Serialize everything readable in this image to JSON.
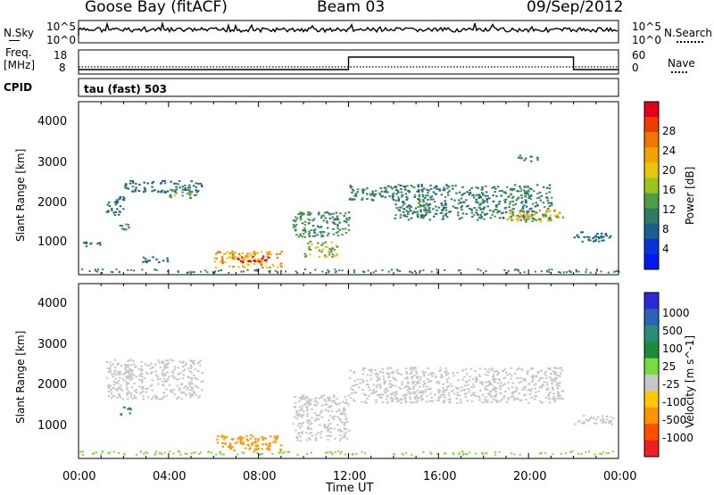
{
  "header": {
    "site": "Goose Bay (fitACF)",
    "beam": "Beam 03",
    "date": "09/Sep/2012"
  },
  "noise_panel": {
    "left_label": "N.Sky",
    "right_label": "N.Search",
    "left_ticks": [
      "10^5",
      "10^0"
    ],
    "right_ticks": [
      "10^5",
      "10^0"
    ]
  },
  "freq_panel": {
    "left_label_1": "Freq.",
    "left_label_2": "[MHz]",
    "left_ticks": [
      "18",
      "8"
    ],
    "right_label": "Nave",
    "right_ticks": [
      "60",
      "0"
    ],
    "cpid_label": "CPID"
  },
  "cpid_text": "tau (fast) 503",
  "x_axis": {
    "label": "Time UT",
    "ticks": [
      "00:00",
      "04:00",
      "08:00",
      "12:00",
      "16:00",
      "20:00",
      "00:00"
    ]
  },
  "y_axis": {
    "label": "Slant Range [km]",
    "ticks": [
      "4000",
      "3000",
      "2000",
      "1000"
    ]
  },
  "power_colorbar": {
    "label": "Power [dB]",
    "ticks": [
      "28",
      "24",
      "20",
      "16",
      "12",
      "8",
      "4"
    ],
    "colors": [
      "#e4001a",
      "#ee3d00",
      "#f07800",
      "#f5a300",
      "#e6c70a",
      "#9ec31f",
      "#4e9c48",
      "#2d7a67",
      "#1b5f8c",
      "#0832d8",
      "#0018f5"
    ]
  },
  "velocity_colorbar": {
    "label": "Velocity [m s^-1]",
    "ticks": [
      "1000",
      "500",
      "100",
      "25",
      "-25",
      "-100",
      "-500",
      "-1000"
    ],
    "colors": [
      "#2a2ad8",
      "#2a64b4",
      "#2a8c78",
      "#1c8c3c",
      "#78dc3c",
      "#c8c8c8",
      "#ffc800",
      "#ff9600",
      "#ff5000",
      "#f01e1e"
    ]
  },
  "chart_data": {
    "type": "heatmap",
    "title": "Goose Bay (fitACF)  Beam 03  09/Sep/2012",
    "xlabel": "Time UT",
    "ylabel": "Slant Range [km]",
    "x_range_hours": [
      0,
      24
    ],
    "y_range_km": [
      180,
      4600
    ],
    "freq_mhz": {
      "segments": [
        {
          "from": 0,
          "to": 12,
          "value": 9
        },
        {
          "from": 12,
          "to": 22,
          "value": 16
        },
        {
          "from": 22,
          "to": 24,
          "value": 9
        }
      ]
    },
    "power_echo_regions": [
      {
        "t0": 0.2,
        "t1": 1.0,
        "r0": 900,
        "r1": 1050,
        "db": 8
      },
      {
        "t0": 1.2,
        "t1": 2.0,
        "r0": 1700,
        "r1": 2200,
        "db": 8
      },
      {
        "t0": 1.8,
        "t1": 2.2,
        "r0": 1300,
        "r1": 1500,
        "db": 12
      },
      {
        "t0": 2.0,
        "t1": 5.5,
        "r0": 2300,
        "r1": 2600,
        "db": 8
      },
      {
        "t0": 4.0,
        "t1": 5.2,
        "r0": 2150,
        "r1": 2400,
        "db": 14
      },
      {
        "t0": 2.8,
        "t1": 4.0,
        "r0": 500,
        "r1": 650,
        "db": 8
      },
      {
        "t0": 6.0,
        "t1": 9.0,
        "r0": 380,
        "r1": 800,
        "db": 20
      },
      {
        "t0": 7.0,
        "t1": 8.5,
        "r0": 500,
        "r1": 680,
        "db": 28
      },
      {
        "t0": 9.5,
        "t1": 12.0,
        "r0": 1150,
        "r1": 1800,
        "db": 12
      },
      {
        "t0": 10.0,
        "t1": 11.5,
        "r0": 650,
        "r1": 1050,
        "db": 16
      },
      {
        "t0": 12.0,
        "t1": 14.0,
        "r0": 2100,
        "r1": 2500,
        "db": 10
      },
      {
        "t0": 14.0,
        "t1": 21.0,
        "r0": 1600,
        "r1": 2500,
        "db": 10
      },
      {
        "t0": 19.0,
        "t1": 21.5,
        "r0": 1550,
        "r1": 1850,
        "db": 18
      },
      {
        "t0": 22.0,
        "t1": 23.8,
        "r0": 1050,
        "r1": 1300,
        "db": 8
      },
      {
        "t0": 19.5,
        "t1": 20.5,
        "r0": 3100,
        "r1": 3250,
        "db": 8
      }
    ],
    "velocity_echo_regions": [
      {
        "t0": 1.2,
        "t1": 5.5,
        "r0": 1700,
        "r1": 2700,
        "v": 0
      },
      {
        "t0": 1.8,
        "t1": 2.3,
        "r0": 1300,
        "r1": 1500,
        "v": 300
      },
      {
        "t0": 6.0,
        "t1": 9.0,
        "r0": 400,
        "r1": 800,
        "v": -200
      },
      {
        "t0": 9.5,
        "t1": 12.0,
        "r0": 650,
        "r1": 1800,
        "v": 0
      },
      {
        "t0": 12.0,
        "t1": 21.5,
        "r0": 1600,
        "r1": 2500,
        "v": 0
      },
      {
        "t0": 22.0,
        "t1": 23.8,
        "r0": 1050,
        "r1": 1300,
        "v": 0
      }
    ]
  }
}
